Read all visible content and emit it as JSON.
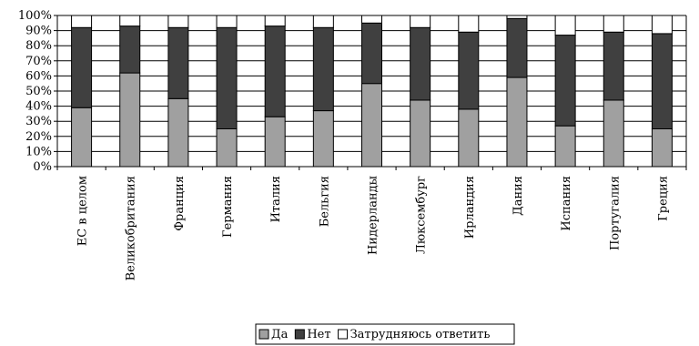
{
  "chart_data": {
    "type": "bar",
    "stacked": true,
    "percent": true,
    "categories": [
      "ЕС в целом",
      "Великобритания",
      "Франция",
      "Германия",
      "Италия",
      "Бельгия",
      "Нидерланды",
      "Люксембург",
      "Ирландия",
      "Дания",
      "Испания",
      "Португалия",
      "Греция"
    ],
    "series": [
      {
        "name": "Да",
        "color": "#a0a0a0",
        "values": [
          39,
          62,
          45,
          25,
          33,
          37,
          55,
          44,
          38,
          59,
          27,
          44,
          25
        ]
      },
      {
        "name": "Нет",
        "color": "#404040",
        "values": [
          53,
          31,
          47,
          67,
          60,
          55,
          40,
          48,
          51,
          39,
          60,
          45,
          63
        ]
      },
      {
        "name": "Затрудняюсь ответить",
        "color": "#ffffff",
        "values": [
          8,
          7,
          8,
          8,
          7,
          8,
          5,
          8,
          11,
          2,
          13,
          11,
          12
        ]
      }
    ],
    "yticks": [
      "0%",
      "10%",
      "20%",
      "30%",
      "40%",
      "50%",
      "60%",
      "70%",
      "80%",
      "90%",
      "100%"
    ],
    "ylim": [
      0,
      100
    ],
    "grid": true,
    "legend_position": "bottom"
  }
}
